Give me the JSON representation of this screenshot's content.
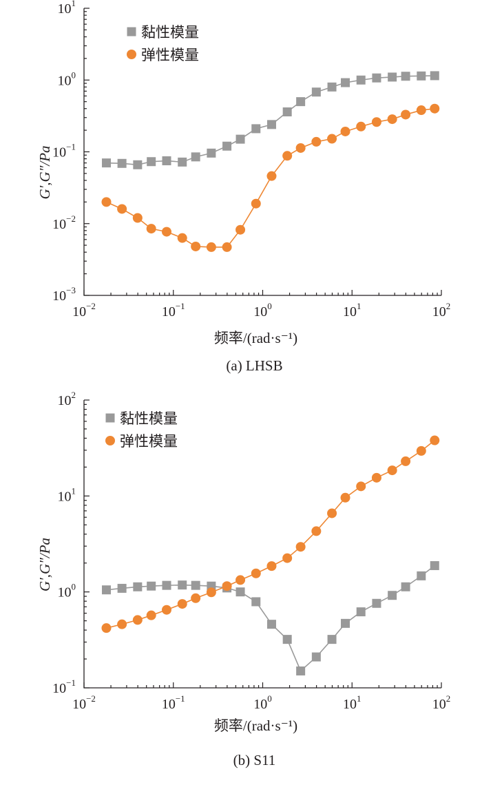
{
  "chart_data": [
    {
      "type": "line",
      "caption": "(a) LHSB",
      "xlabel": "频率/(rad·s⁻¹)",
      "ylabel": "G′,G″/Pa",
      "x_scale": "log",
      "y_scale": "log",
      "xlim": [
        0.01,
        100
      ],
      "ylim": [
        0.001,
        10
      ],
      "x_ticks": [
        "10^-2",
        "10^-1",
        "10^0",
        "10^1",
        "10^2"
      ],
      "y_ticks": [
        "10^-3",
        "10^-2",
        "10^-1",
        "10^0",
        "10^1"
      ],
      "grid": false,
      "legend_position": "top-left",
      "x": [
        0.0178,
        0.0266,
        0.0398,
        0.0566,
        0.0841,
        0.1259,
        0.1778,
        0.266,
        0.398,
        0.5623,
        0.8414,
        1.2589,
        1.8836,
        2.6607,
        3.9811,
        5.9566,
        8.4139,
        12.589,
        18.836,
        28.184,
        39.811,
        59.566,
        84.139
      ],
      "series": [
        {
          "name": "黏性模量",
          "marker": "square",
          "color": "#999999",
          "values": [
            0.07,
            0.069,
            0.066,
            0.073,
            0.075,
            0.072,
            0.085,
            0.096,
            0.12,
            0.15,
            0.21,
            0.24,
            0.36,
            0.5,
            0.68,
            0.8,
            0.92,
            1.0,
            1.07,
            1.1,
            1.13,
            1.14,
            1.15
          ]
        },
        {
          "name": "弹性模量",
          "marker": "circle",
          "color": "#ee8733",
          "values": [
            0.02,
            0.016,
            0.012,
            0.0085,
            0.0077,
            0.0063,
            0.0048,
            0.0047,
            0.0047,
            0.0082,
            0.019,
            0.046,
            0.088,
            0.113,
            0.138,
            0.152,
            0.192,
            0.225,
            0.26,
            0.285,
            0.33,
            0.38,
            0.4
          ]
        }
      ]
    },
    {
      "type": "line",
      "caption": "(b) S11",
      "xlabel": "频率/(rad·s⁻¹)",
      "ylabel": "G′,G″/Pa",
      "x_scale": "log",
      "y_scale": "log",
      "xlim": [
        0.01,
        100
      ],
      "ylim": [
        0.1,
        100
      ],
      "x_ticks": [
        "10^-2",
        "10^-1",
        "10^0",
        "10^1",
        "10^2"
      ],
      "y_ticks": [
        "10^-1",
        "10^0",
        "10^1",
        "10^2"
      ],
      "grid": false,
      "legend_position": "top-left",
      "x": [
        0.0178,
        0.0266,
        0.0398,
        0.0566,
        0.0841,
        0.1259,
        0.1778,
        0.266,
        0.398,
        0.5623,
        0.8414,
        1.2589,
        1.8836,
        2.6607,
        3.9811,
        5.9566,
        8.4139,
        12.589,
        18.836,
        28.184,
        39.811,
        59.566,
        84.139
      ],
      "series": [
        {
          "name": "黏性模量",
          "marker": "square",
          "color": "#999999",
          "values": [
            1.05,
            1.09,
            1.13,
            1.15,
            1.17,
            1.18,
            1.17,
            1.15,
            1.1,
            1.0,
            0.79,
            0.46,
            0.32,
            0.15,
            0.21,
            0.32,
            0.47,
            0.62,
            0.76,
            0.92,
            1.13,
            1.47,
            1.88
          ]
        },
        {
          "name": "弹性模量",
          "marker": "circle",
          "color": "#ee8733",
          "values": [
            0.42,
            0.46,
            0.51,
            0.57,
            0.65,
            0.75,
            0.86,
            0.99,
            1.15,
            1.33,
            1.56,
            1.86,
            2.25,
            2.95,
            4.3,
            6.6,
            9.6,
            12.6,
            15.5,
            18.5,
            23.0,
            29.5,
            38.0
          ]
        }
      ]
    }
  ]
}
